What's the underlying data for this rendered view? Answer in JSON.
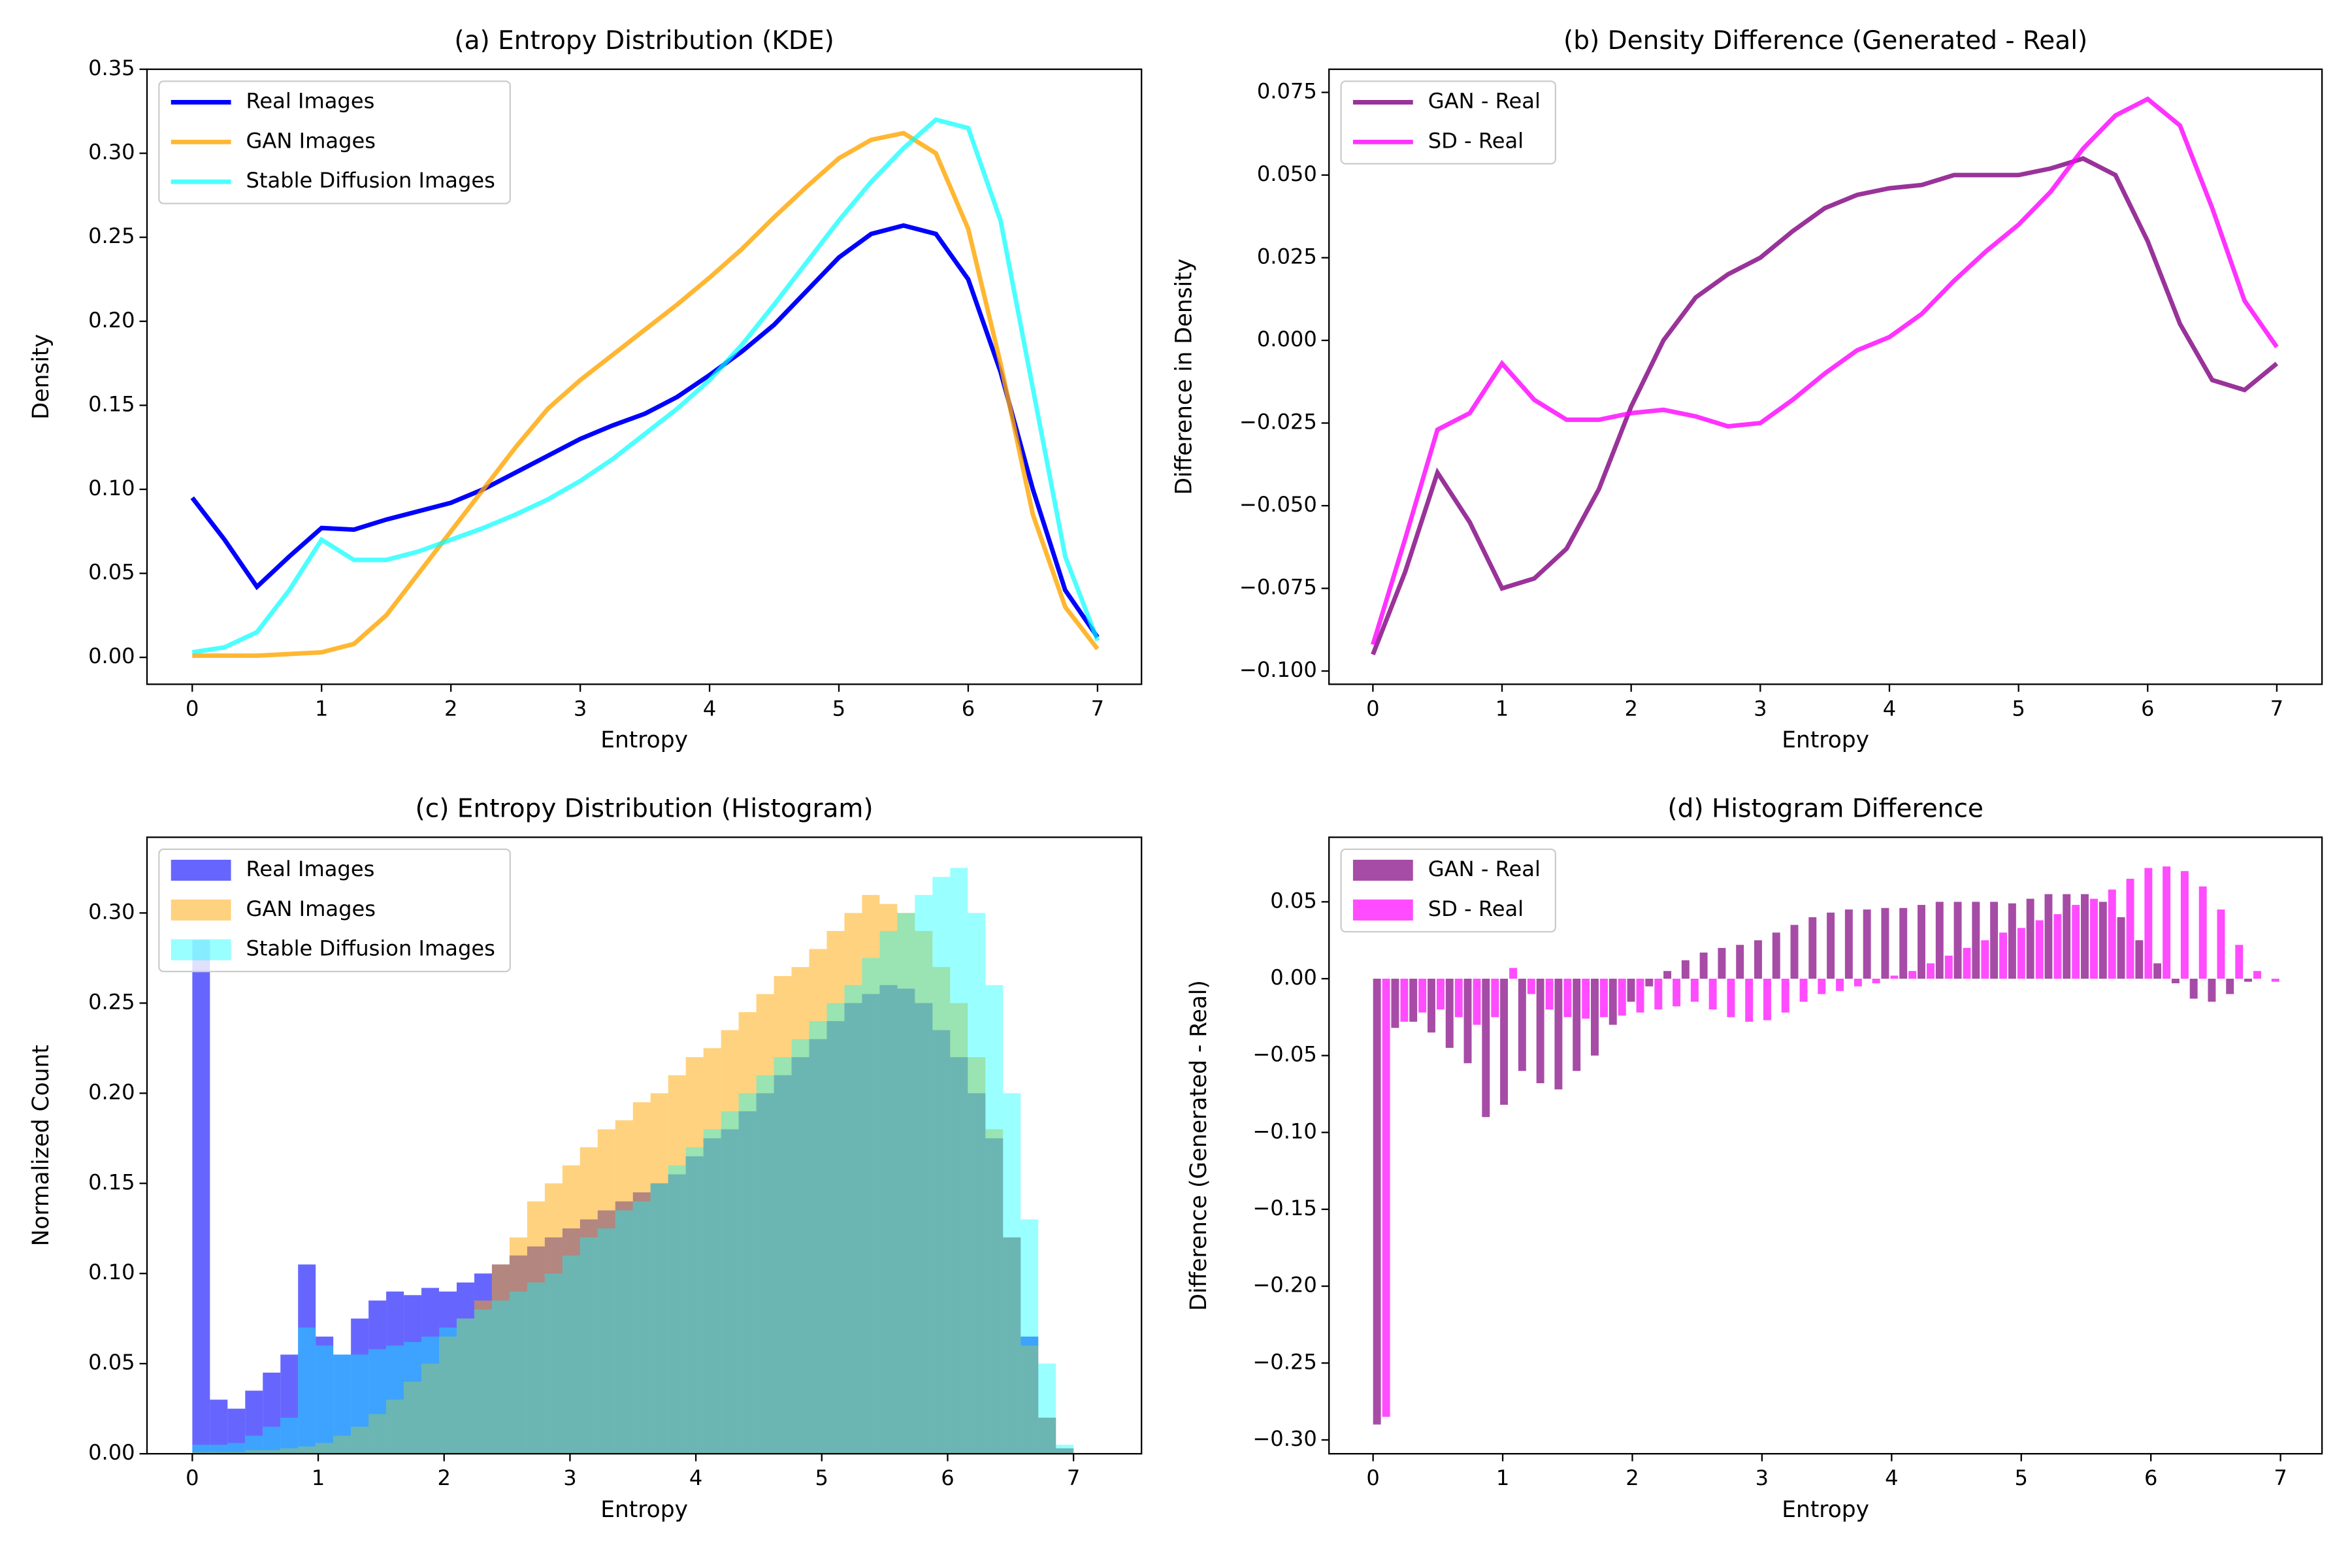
{
  "chart_data": [
    {
      "type": "line",
      "title": "(a) Entropy Distribution (KDE)",
      "x_label": "Entropy",
      "y_label": "Density",
      "x": [
        0,
        0.25,
        0.5,
        0.75,
        1,
        1.25,
        1.5,
        1.75,
        2,
        2.25,
        2.5,
        2.75,
        3,
        3.25,
        3.5,
        3.75,
        4,
        4.25,
        4.5,
        4.75,
        5,
        5.25,
        5.5,
        5.75,
        6,
        6.25,
        6.5,
        6.75,
        7
      ],
      "series": [
        {
          "name": "Real Images",
          "color": "#0000ff",
          "alpha": 1,
          "values": [
            0.095,
            0.07,
            0.042,
            0.06,
            0.077,
            0.076,
            0.082,
            0.087,
            0.092,
            0.1,
            0.11,
            0.12,
            0.13,
            0.138,
            0.145,
            0.155,
            0.168,
            0.182,
            0.198,
            0.218,
            0.238,
            0.252,
            0.257,
            0.252,
            0.225,
            0.17,
            0.1,
            0.04,
            0.012
          ]
        },
        {
          "name": "GAN Images",
          "color": "#ffa500",
          "alpha": 0.8,
          "values": [
            0.001,
            0.001,
            0.001,
            0.002,
            0.003,
            0.008,
            0.025,
            0.05,
            0.075,
            0.1,
            0.125,
            0.148,
            0.165,
            0.18,
            0.195,
            0.21,
            0.226,
            0.243,
            0.262,
            0.28,
            0.297,
            0.308,
            0.312,
            0.3,
            0.255,
            0.175,
            0.085,
            0.03,
            0.005
          ]
        },
        {
          "name": "Stable Diffusion Images",
          "color": "#00ffff",
          "alpha": 0.7,
          "values": [
            0.003,
            0.006,
            0.015,
            0.04,
            0.07,
            0.058,
            0.058,
            0.063,
            0.07,
            0.077,
            0.085,
            0.094,
            0.105,
            0.118,
            0.133,
            0.148,
            0.165,
            0.186,
            0.21,
            0.235,
            0.26,
            0.283,
            0.303,
            0.32,
            0.315,
            0.26,
            0.16,
            0.06,
            0.01
          ]
        }
      ],
      "xlim": [
        -0.35,
        7.34
      ],
      "ylim": [
        -0.016,
        0.35
      ],
      "xticks": [
        0,
        1,
        2,
        3,
        4,
        5,
        6,
        7
      ],
      "yticks": [
        {
          "value": 0,
          "label": "0.00"
        },
        {
          "value": 0.05,
          "label": "0.05"
        },
        {
          "value": 0.1,
          "label": "0.10"
        },
        {
          "value": 0.15,
          "label": "0.15"
        },
        {
          "value": 0.2,
          "label": "0.20"
        },
        {
          "value": 0.25,
          "label": "0.25"
        },
        {
          "value": 0.3,
          "label": "0.30"
        },
        {
          "value": 0.35,
          "label": "0.35"
        }
      ],
      "legend": "upper left"
    },
    {
      "type": "line",
      "title": "(b) Density Difference (Generated - Real)",
      "x_label": "Entropy",
      "y_label": "Difference in Density",
      "x": [
        0,
        0.25,
        0.5,
        0.75,
        1,
        1.25,
        1.5,
        1.75,
        2,
        2.25,
        2.5,
        2.75,
        3,
        3.25,
        3.5,
        3.75,
        4,
        4.25,
        4.5,
        4.75,
        5,
        5.25,
        5.5,
        5.75,
        6,
        6.25,
        6.5,
        6.75,
        7
      ],
      "series": [
        {
          "name": "GAN - Real",
          "color": "#800080",
          "alpha": 0.8,
          "values": [
            -0.095,
            -0.07,
            -0.04,
            -0.055,
            -0.075,
            -0.072,
            -0.063,
            -0.045,
            -0.02,
            0,
            0.013,
            0.02,
            0.025,
            0.033,
            0.04,
            0.044,
            0.046,
            0.047,
            0.05,
            0.05,
            0.05,
            0.052,
            0.055,
            0.05,
            0.03,
            0.005,
            -0.012,
            -0.015,
            -0.007
          ]
        },
        {
          "name": "SD - Real",
          "color": "#ff00ff",
          "alpha": 0.8,
          "values": [
            -0.092,
            -0.06,
            -0.027,
            -0.022,
            -0.007,
            -0.018,
            -0.024,
            -0.024,
            -0.022,
            -0.021,
            -0.023,
            -0.026,
            -0.025,
            -0.018,
            -0.01,
            -0.003,
            0.001,
            0.008,
            0.018,
            0.027,
            0.035,
            0.045,
            0.058,
            0.068,
            0.073,
            0.065,
            0.04,
            0.012,
            -0.002
          ]
        }
      ],
      "xlim": [
        -0.34,
        7.35
      ],
      "ylim": [
        -0.104,
        0.082
      ],
      "xticks": [
        0,
        1,
        2,
        3,
        4,
        5,
        6,
        7
      ],
      "yticks": [
        {
          "value": -0.1,
          "label": "−0.100"
        },
        {
          "value": -0.075,
          "label": "−0.075"
        },
        {
          "value": -0.05,
          "label": "−0.050"
        },
        {
          "value": -0.025,
          "label": "−0.025"
        },
        {
          "value": 0,
          "label": "0.000"
        },
        {
          "value": 0.025,
          "label": "0.025"
        },
        {
          "value": 0.05,
          "label": "0.050"
        },
        {
          "value": 0.075,
          "label": "0.075"
        }
      ],
      "legend": "upper left"
    },
    {
      "type": "histogram",
      "title": "(c) Entropy Distribution (Histogram)",
      "x_label": "Entropy",
      "y_label": "Normalized Count",
      "bins": [
        0,
        0.14,
        0.28,
        0.42,
        0.56,
        0.7,
        0.84,
        0.98,
        1.12,
        1.26,
        1.4,
        1.54,
        1.68,
        1.82,
        1.96,
        2.1,
        2.24,
        2.38,
        2.52,
        2.66,
        2.8,
        2.94,
        3.08,
        3.22,
        3.36,
        3.5,
        3.64,
        3.78,
        3.92,
        4.06,
        4.2,
        4.34,
        4.48,
        4.62,
        4.76,
        4.9,
        5.04,
        5.18,
        5.32,
        5.46,
        5.6,
        5.74,
        5.88,
        6.02,
        6.16,
        6.3,
        6.44,
        6.58,
        6.72,
        6.86,
        7.0
      ],
      "series": [
        {
          "name": "Real Images",
          "color": "#0000ff",
          "alpha": 0.6,
          "values": [
            0.285,
            0.03,
            0.025,
            0.035,
            0.045,
            0.055,
            0.105,
            0.065,
            0.055,
            0.075,
            0.085,
            0.09,
            0.088,
            0.092,
            0.09,
            0.095,
            0.1,
            0.105,
            0.11,
            0.115,
            0.12,
            0.125,
            0.13,
            0.135,
            0.14,
            0.145,
            0.15,
            0.155,
            0.165,
            0.175,
            0.18,
            0.19,
            0.2,
            0.21,
            0.22,
            0.23,
            0.24,
            0.25,
            0.255,
            0.26,
            0.258,
            0.25,
            0.235,
            0.22,
            0.2,
            0.175,
            0.12,
            0.065,
            0.02,
            0.003
          ]
        },
        {
          "name": "GAN Images",
          "color": "#ffa500",
          "alpha": 0.5,
          "values": [
            0.001,
            0.001,
            0.001,
            0.002,
            0.002,
            0.003,
            0.004,
            0.006,
            0.01,
            0.015,
            0.022,
            0.03,
            0.04,
            0.05,
            0.065,
            0.075,
            0.085,
            0.105,
            0.12,
            0.14,
            0.15,
            0.16,
            0.17,
            0.18,
            0.185,
            0.195,
            0.2,
            0.21,
            0.22,
            0.225,
            0.235,
            0.245,
            0.255,
            0.265,
            0.27,
            0.28,
            0.29,
            0.3,
            0.31,
            0.305,
            0.3,
            0.29,
            0.27,
            0.25,
            0.22,
            0.18,
            0.12,
            0.06,
            0.02,
            0.003
          ]
        },
        {
          "name": "Stable Diffusion Images",
          "color": "#00ffff",
          "alpha": 0.4,
          "values": [
            0.005,
            0.005,
            0.006,
            0.01,
            0.015,
            0.02,
            0.07,
            0.06,
            0.055,
            0.055,
            0.058,
            0.06,
            0.062,
            0.065,
            0.07,
            0.075,
            0.08,
            0.085,
            0.09,
            0.095,
            0.1,
            0.11,
            0.12,
            0.125,
            0.135,
            0.14,
            0.15,
            0.16,
            0.17,
            0.18,
            0.19,
            0.2,
            0.21,
            0.22,
            0.23,
            0.24,
            0.25,
            0.26,
            0.275,
            0.29,
            0.3,
            0.31,
            0.32,
            0.325,
            0.3,
            0.26,
            0.2,
            0.13,
            0.05,
            0.005
          ]
        }
      ],
      "xlim": [
        -0.36,
        7.54
      ],
      "ylim": [
        0,
        0.342
      ],
      "xticks": [
        0,
        1,
        2,
        3,
        4,
        5,
        6,
        7
      ],
      "yticks": [
        {
          "value": 0,
          "label": "0.00"
        },
        {
          "value": 0.05,
          "label": "0.05"
        },
        {
          "value": 0.1,
          "label": "0.10"
        },
        {
          "value": 0.15,
          "label": "0.15"
        },
        {
          "value": 0.2,
          "label": "0.20"
        },
        {
          "value": 0.25,
          "label": "0.25"
        },
        {
          "value": 0.3,
          "label": "0.30"
        }
      ],
      "legend": "upper left"
    },
    {
      "type": "bar",
      "title": "(d) Histogram Difference",
      "x_label": "Entropy",
      "y_label": "Difference (Generated - Real)",
      "x": [
        0,
        0.14,
        0.28,
        0.42,
        0.56,
        0.7,
        0.84,
        0.98,
        1.12,
        1.26,
        1.4,
        1.54,
        1.68,
        1.82,
        1.96,
        2.1,
        2.24,
        2.38,
        2.52,
        2.66,
        2.8,
        2.94,
        3.08,
        3.22,
        3.36,
        3.5,
        3.64,
        3.78,
        3.92,
        4.06,
        4.2,
        4.34,
        4.48,
        4.62,
        4.76,
        4.9,
        5.04,
        5.18,
        5.32,
        5.46,
        5.6,
        5.74,
        5.88,
        6.02,
        6.16,
        6.3,
        6.44,
        6.58,
        6.72,
        6.86
      ],
      "series": [
        {
          "name": "GAN - Real",
          "color": "#800080",
          "alpha": 0.7,
          "values": [
            -0.29,
            -0.032,
            -0.028,
            -0.035,
            -0.045,
            -0.055,
            -0.09,
            -0.082,
            -0.06,
            -0.068,
            -0.072,
            -0.06,
            -0.05,
            -0.03,
            -0.015,
            -0.005,
            0.005,
            0.012,
            0.017,
            0.02,
            0.022,
            0.025,
            0.03,
            0.035,
            0.04,
            0.043,
            0.045,
            0.045,
            0.046,
            0.046,
            0.048,
            0.05,
            0.05,
            0.05,
            0.05,
            0.049,
            0.052,
            0.055,
            0.055,
            0.055,
            0.05,
            0.04,
            0.025,
            0.01,
            -0.003,
            -0.013,
            -0.015,
            -0.01,
            -0.002,
            0
          ]
        },
        {
          "name": "SD - Real",
          "color": "#ff00ff",
          "alpha": 0.7,
          "values": [
            -0.285,
            -0.028,
            -0.022,
            -0.02,
            -0.025,
            -0.03,
            -0.025,
            0.007,
            -0.01,
            -0.02,
            -0.025,
            -0.026,
            -0.025,
            -0.024,
            -0.022,
            -0.02,
            -0.018,
            -0.015,
            -0.02,
            -0.025,
            -0.028,
            -0.027,
            -0.022,
            -0.015,
            -0.01,
            -0.008,
            -0.005,
            -0.003,
            0.002,
            0.005,
            0.01,
            0.015,
            0.02,
            0.025,
            0.03,
            0.033,
            0.038,
            0.042,
            0.048,
            0.052,
            0.058,
            0.065,
            0.072,
            0.073,
            0.07,
            0.06,
            0.045,
            0.022,
            0.005,
            -0.002
          ]
        }
      ],
      "xlim": [
        -0.34,
        7.32
      ],
      "ylim": [
        -0.309,
        0.092
      ],
      "xticks": [
        0,
        1,
        2,
        3,
        4,
        5,
        6,
        7
      ],
      "yticks": [
        {
          "value": -0.3,
          "label": "−0.30"
        },
        {
          "value": -0.25,
          "label": "−0.25"
        },
        {
          "value": -0.2,
          "label": "−0.20"
        },
        {
          "value": -0.15,
          "label": "−0.15"
        },
        {
          "value": -0.1,
          "label": "−0.10"
        },
        {
          "value": -0.05,
          "label": "−0.05"
        },
        {
          "value": 0,
          "label": "0.00"
        },
        {
          "value": 0.05,
          "label": "0.05"
        }
      ],
      "legend": "upper left"
    }
  ]
}
